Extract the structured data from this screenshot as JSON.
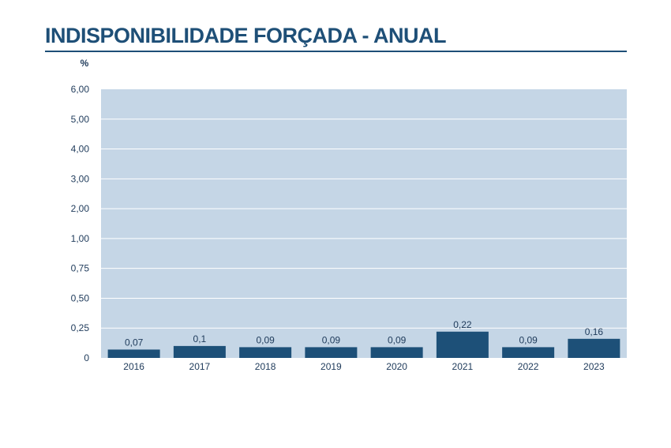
{
  "chart_data": {
    "type": "bar",
    "title": "INDISPONIBILIDADE FORÇADA - ANUAL",
    "ylabel": "%",
    "xlabel": "",
    "categories": [
      "2016",
      "2017",
      "2018",
      "2019",
      "2020",
      "2021",
      "2022",
      "2023"
    ],
    "values": [
      0.07,
      0.1,
      0.09,
      0.09,
      0.09,
      0.22,
      0.09,
      0.16
    ],
    "data_labels": [
      "0,07",
      "0,1",
      "0,09",
      "0,09",
      "0,09",
      "0,22",
      "0,09",
      "0,16"
    ],
    "y_ticks": [
      {
        "value": 0,
        "label": "0"
      },
      {
        "value": 0.25,
        "label": "0,25"
      },
      {
        "value": 0.5,
        "label": "0,50"
      },
      {
        "value": 0.75,
        "label": "0,75"
      },
      {
        "value": 1,
        "label": "1,00"
      },
      {
        "value": 2,
        "label": "2,00"
      },
      {
        "value": 3,
        "label": "3,00"
      },
      {
        "value": 4,
        "label": "4,00"
      },
      {
        "value": 5,
        "label": "5,00"
      },
      {
        "value": 6,
        "label": "6,00"
      }
    ],
    "ylim": [
      0,
      6
    ],
    "grid": true,
    "legend": "none",
    "colors": {
      "bar": "#1d5078",
      "plot_background": "#c5d6e6",
      "gridline": "#ffffff",
      "title": "#1e4f77"
    }
  }
}
